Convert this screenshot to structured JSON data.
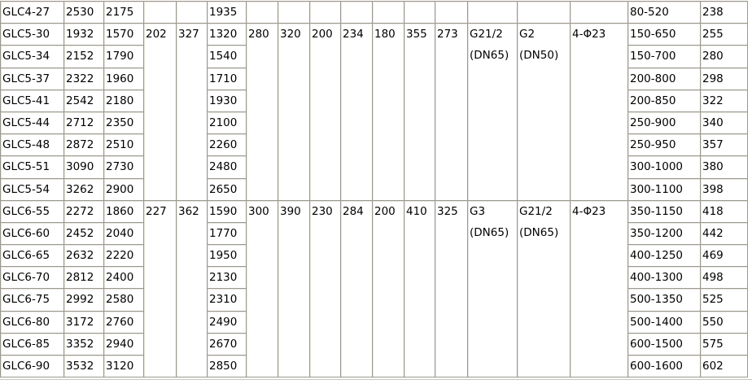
{
  "table": {
    "groups": [
      {
        "merged": [
          "",
          "",
          "",
          "",
          "",
          "",
          "",
          "",
          "",
          "",
          "",
          "",
          "",
          ""
        ],
        "rows": [
          {
            "model": "GLC4-27",
            "a": "2530",
            "b": "2175",
            "c": "1935",
            "range": "80-520",
            "w": "238"
          }
        ]
      },
      {
        "merged": [
          "202",
          "327",
          "280",
          "320",
          "200",
          "234",
          "180",
          "355",
          "273",
          "G21/2",
          "(DN65)",
          "G2",
          "(DN50)",
          "4-Φ23"
        ],
        "rows": [
          {
            "model": "GLC5-30",
            "a": "1932",
            "b": "1570",
            "c": "1320",
            "range": "150-650",
            "w": "255"
          },
          {
            "model": "GLC5-34",
            "a": "2152",
            "b": "1790",
            "c": "1540",
            "range": "150-700",
            "w": "280"
          },
          {
            "model": "GLC5-37",
            "a": "2322",
            "b": "1960",
            "c": "1710",
            "range": "200-800",
            "w": "298"
          },
          {
            "model": "GLC5-41",
            "a": "2542",
            "b": "2180",
            "c": "1930",
            "range": "200-850",
            "w": "322"
          },
          {
            "model": "GLC5-44",
            "a": "2712",
            "b": "2350",
            "c": "2100",
            "range": "250-900",
            "w": "340"
          },
          {
            "model": "GLC5-48",
            "a": "2872",
            "b": "2510",
            "c": "2260",
            "range": "250-950",
            "w": "357"
          },
          {
            "model": "GLC5-51",
            "a": "3090",
            "b": "2730",
            "c": "2480",
            "range": "300-1000",
            "w": "380"
          },
          {
            "model": "GLC5-54",
            "a": "3262",
            "b": "2900",
            "c": "2650",
            "range": "300-1100",
            "w": "398"
          }
        ]
      },
      {
        "merged": [
          "227",
          "362",
          "300",
          "390",
          "230",
          "284",
          "200",
          "410",
          "325",
          "G3",
          "(DN65)",
          "G21/2",
          "(DN65)",
          "4-Φ23"
        ],
        "rows": [
          {
            "model": "GLC6-55",
            "a": "2272",
            "b": "1860",
            "c": "1590",
            "range": "350-1150",
            "w": "418"
          },
          {
            "model": "GLC6-60",
            "a": "2452",
            "b": "2040",
            "c": "1770",
            "range": "350-1200",
            "w": "442"
          },
          {
            "model": "GLC6-65",
            "a": "2632",
            "b": "2220",
            "c": "1950",
            "range": "400-1250",
            "w": "469"
          },
          {
            "model": "GLC6-70",
            "a": "2812",
            "b": "2400",
            "c": "2130",
            "range": "400-1300",
            "w": "498"
          },
          {
            "model": "GLC6-75",
            "a": "2992",
            "b": "2580",
            "c": "2310",
            "range": "500-1350",
            "w": "525"
          },
          {
            "model": "GLC6-80",
            "a": "3172",
            "b": "2760",
            "c": "2490",
            "range": "500-1400",
            "w": "550"
          },
          {
            "model": "GLC6-85",
            "a": "3352",
            "b": "2940",
            "c": "2670",
            "range": "600-1500",
            "w": "575"
          },
          {
            "model": "GLC6-90",
            "a": "3532",
            "b": "3120",
            "c": "2850",
            "range": "600-1600",
            "w": "602"
          }
        ]
      }
    ]
  }
}
